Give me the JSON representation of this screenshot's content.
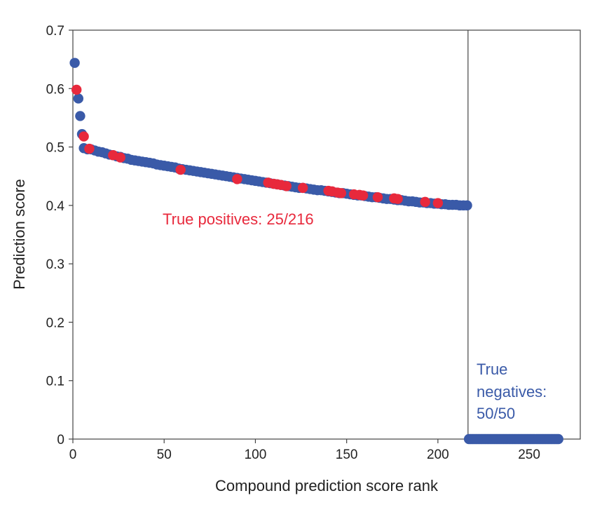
{
  "chart_data": {
    "type": "scatter",
    "title": "",
    "xlabel": "Compound prediction score rank",
    "ylabel": "Prediction score",
    "xlim": [
      0,
      278
    ],
    "ylim": [
      0,
      0.7
    ],
    "x_ticks": [
      0,
      50,
      100,
      150,
      200,
      250
    ],
    "x_tick_labels": [
      "0",
      "50",
      "100",
      "150",
      "200",
      "250"
    ],
    "y_ticks": [
      0,
      0.1,
      0.2,
      0.3,
      0.4,
      0.5,
      0.6,
      0.7
    ],
    "y_tick_labels": [
      "0",
      "0.1",
      "0.2",
      "0.3",
      "0.4",
      "0.5",
      "0.6",
      "0.7"
    ],
    "grid": false,
    "divider_x": 216.5,
    "colors": {
      "negative": "#3a5aa8",
      "positive": "#e8293c",
      "axis": "#444444"
    },
    "series": [
      {
        "role": "predicted",
        "color": "#3a5aa8",
        "points": [
          [
            1,
            0.644
          ],
          [
            3,
            0.583
          ],
          [
            4,
            0.553
          ],
          [
            5,
            0.522
          ],
          [
            6,
            0.498
          ],
          [
            8,
            0.496
          ],
          [
            10,
            0.496
          ],
          [
            12,
            0.494
          ],
          [
            14,
            0.492
          ],
          [
            16,
            0.491
          ],
          [
            18,
            0.489
          ],
          [
            20,
            0.487
          ],
          [
            22,
            0.486
          ],
          [
            24,
            0.484
          ],
          [
            26,
            0.483
          ],
          [
            28,
            0.481
          ],
          [
            30,
            0.48
          ],
          [
            32,
            0.478
          ],
          [
            34,
            0.477
          ],
          [
            36,
            0.476
          ],
          [
            38,
            0.475
          ],
          [
            40,
            0.474
          ],
          [
            42,
            0.473
          ],
          [
            44,
            0.472
          ],
          [
            46,
            0.47
          ],
          [
            48,
            0.469
          ],
          [
            50,
            0.468
          ],
          [
            52,
            0.467
          ],
          [
            54,
            0.466
          ],
          [
            56,
            0.465
          ],
          [
            58,
            0.463
          ],
          [
            60,
            0.462
          ],
          [
            62,
            0.461
          ],
          [
            64,
            0.46
          ],
          [
            66,
            0.459
          ],
          [
            68,
            0.458
          ],
          [
            70,
            0.457
          ],
          [
            72,
            0.456
          ],
          [
            74,
            0.455
          ],
          [
            76,
            0.454
          ],
          [
            78,
            0.453
          ],
          [
            80,
            0.452
          ],
          [
            82,
            0.451
          ],
          [
            84,
            0.45
          ],
          [
            86,
            0.449
          ],
          [
            88,
            0.448
          ],
          [
            90,
            0.447
          ],
          [
            92,
            0.446
          ],
          [
            94,
            0.445
          ],
          [
            96,
            0.444
          ],
          [
            98,
            0.443
          ],
          [
            100,
            0.442
          ],
          [
            102,
            0.441
          ],
          [
            104,
            0.44
          ],
          [
            106,
            0.439
          ],
          [
            108,
            0.438
          ],
          [
            110,
            0.437
          ],
          [
            112,
            0.436
          ],
          [
            114,
            0.435
          ],
          [
            116,
            0.434
          ],
          [
            118,
            0.433
          ],
          [
            120,
            0.432
          ],
          [
            122,
            0.431
          ],
          [
            124,
            0.43
          ],
          [
            126,
            0.43
          ],
          [
            128,
            0.429
          ],
          [
            130,
            0.428
          ],
          [
            132,
            0.427
          ],
          [
            134,
            0.426
          ],
          [
            136,
            0.426
          ],
          [
            138,
            0.425
          ],
          [
            140,
            0.424
          ],
          [
            142,
            0.423
          ],
          [
            144,
            0.422
          ],
          [
            146,
            0.421
          ],
          [
            148,
            0.421
          ],
          [
            150,
            0.42
          ],
          [
            152,
            0.419
          ],
          [
            154,
            0.418
          ],
          [
            156,
            0.417
          ],
          [
            158,
            0.417
          ],
          [
            160,
            0.416
          ],
          [
            162,
            0.415
          ],
          [
            164,
            0.414
          ],
          [
            166,
            0.414
          ],
          [
            168,
            0.413
          ],
          [
            170,
            0.412
          ],
          [
            172,
            0.411
          ],
          [
            174,
            0.411
          ],
          [
            176,
            0.41
          ],
          [
            178,
            0.409
          ],
          [
            180,
            0.409
          ],
          [
            182,
            0.408
          ],
          [
            184,
            0.407
          ],
          [
            186,
            0.407
          ],
          [
            188,
            0.406
          ],
          [
            190,
            0.405
          ],
          [
            192,
            0.405
          ],
          [
            194,
            0.404
          ],
          [
            196,
            0.404
          ],
          [
            198,
            0.403
          ],
          [
            200,
            0.403
          ],
          [
            202,
            0.402
          ],
          [
            204,
            0.402
          ],
          [
            206,
            0.401
          ],
          [
            208,
            0.401
          ],
          [
            210,
            0.401
          ],
          [
            212,
            0.4
          ],
          [
            214,
            0.4
          ],
          [
            216,
            0.4
          ]
        ]
      },
      {
        "role": "true-positive",
        "color": "#e8293c",
        "points": [
          [
            2,
            0.598
          ],
          [
            6,
            0.518
          ],
          [
            9,
            0.497
          ],
          [
            22,
            0.486
          ],
          [
            26,
            0.482
          ],
          [
            59,
            0.461
          ],
          [
            90,
            0.445
          ],
          [
            107,
            0.439
          ],
          [
            110,
            0.437
          ],
          [
            112,
            0.436
          ],
          [
            114,
            0.435
          ],
          [
            117,
            0.433
          ],
          [
            126,
            0.43
          ],
          [
            140,
            0.425
          ],
          [
            142,
            0.424
          ],
          [
            145,
            0.422
          ],
          [
            147,
            0.421
          ],
          [
            154,
            0.419
          ],
          [
            157,
            0.418
          ],
          [
            159,
            0.417
          ],
          [
            167,
            0.414
          ],
          [
            176,
            0.412
          ],
          [
            178,
            0.411
          ],
          [
            193,
            0.406
          ],
          [
            200,
            0.404
          ]
        ]
      },
      {
        "role": "true-negative",
        "color": "#3a5aa8",
        "x_start": 217,
        "x_end": 266,
        "y": 0
      }
    ],
    "annotations": {
      "positives": "True positives: 25/216",
      "negatives_line1": "True",
      "negatives_line2": "negatives:",
      "negatives_line3": "50/50"
    }
  }
}
